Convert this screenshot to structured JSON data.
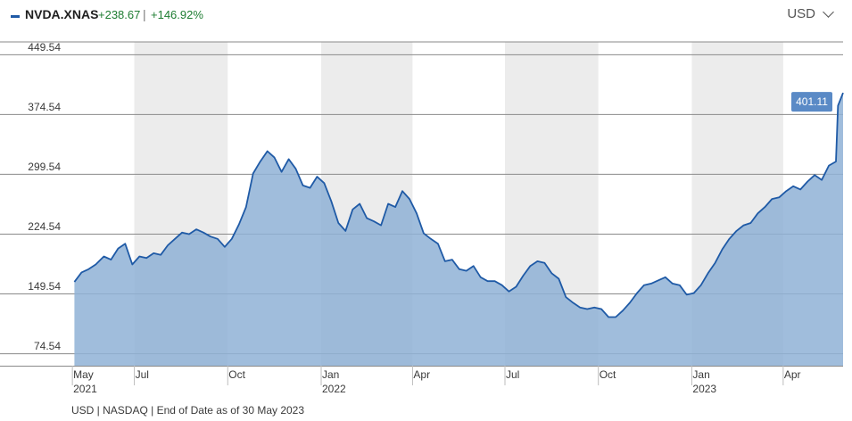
{
  "header": {
    "ticker": "NVDA.XNAS",
    "change_abs": "+238.67",
    "separator": "|",
    "change_pct": "+146.92%",
    "currency": "USD"
  },
  "footer": {
    "note": "USD | NASDAQ | End of Date as of 30 May 2023"
  },
  "colors": {
    "line": "#1f5aa6",
    "area": "#8fb1d6",
    "shade": "#ececec",
    "positive": "#1e7d32",
    "last_badge": "#5a8ac6"
  },
  "chart_data": {
    "type": "area",
    "series": [
      {
        "name": "NVDA.XNAS",
        "x": [
          "2021-05-03",
          "2021-05-10",
          "2021-05-17",
          "2021-05-24",
          "2021-06-01",
          "2021-06-08",
          "2021-06-15",
          "2021-06-22",
          "2021-06-29",
          "2021-07-06",
          "2021-07-13",
          "2021-07-20",
          "2021-07-27",
          "2021-08-03",
          "2021-08-10",
          "2021-08-17",
          "2021-08-24",
          "2021-08-31",
          "2021-09-07",
          "2021-09-14",
          "2021-09-21",
          "2021-09-28",
          "2021-10-05",
          "2021-10-12",
          "2021-10-19",
          "2021-10-26",
          "2021-11-02",
          "2021-11-09",
          "2021-11-16",
          "2021-11-23",
          "2021-11-30",
          "2021-12-07",
          "2021-12-14",
          "2021-12-21",
          "2021-12-28",
          "2022-01-04",
          "2022-01-11",
          "2022-01-18",
          "2022-01-25",
          "2022-02-01",
          "2022-02-08",
          "2022-02-15",
          "2022-02-22",
          "2022-03-01",
          "2022-03-08",
          "2022-03-15",
          "2022-03-22",
          "2022-03-29",
          "2022-04-05",
          "2022-04-12",
          "2022-04-19",
          "2022-04-26",
          "2022-05-03",
          "2022-05-10",
          "2022-05-17",
          "2022-05-24",
          "2022-05-31",
          "2022-06-07",
          "2022-06-14",
          "2022-06-21",
          "2022-06-28",
          "2022-07-05",
          "2022-07-12",
          "2022-07-19",
          "2022-07-26",
          "2022-08-02",
          "2022-08-09",
          "2022-08-16",
          "2022-08-23",
          "2022-08-30",
          "2022-09-06",
          "2022-09-13",
          "2022-09-20",
          "2022-09-27",
          "2022-10-04",
          "2022-10-11",
          "2022-10-18",
          "2022-10-25",
          "2022-11-01",
          "2022-11-08",
          "2022-11-15",
          "2022-11-22",
          "2022-11-29",
          "2022-12-06",
          "2022-12-13",
          "2022-12-20",
          "2022-12-27",
          "2023-01-03",
          "2023-01-10",
          "2023-01-17",
          "2023-01-24",
          "2023-01-31",
          "2023-02-07",
          "2023-02-14",
          "2023-02-21",
          "2023-02-28",
          "2023-03-07",
          "2023-03-14",
          "2023-03-21",
          "2023-03-28",
          "2023-04-04",
          "2023-04-11",
          "2023-04-18",
          "2023-04-25",
          "2023-05-02",
          "2023-05-09",
          "2023-05-16",
          "2023-05-23",
          "2023-05-25",
          "2023-05-30"
        ],
        "values": [
          164,
          176,
          180,
          186,
          196,
          192,
          206,
          212,
          186,
          196,
          194,
          200,
          198,
          210,
          218,
          226,
          224,
          230,
          226,
          221,
          218,
          208,
          218,
          236,
          258,
          300,
          315,
          328,
          320,
          302,
          318,
          306,
          285,
          282,
          296,
          288,
          265,
          238,
          228,
          255,
          262,
          244,
          240,
          235,
          262,
          258,
          278,
          268,
          250,
          225,
          218,
          212,
          190,
          192,
          180,
          178,
          184,
          170,
          165,
          165,
          160,
          152,
          158,
          172,
          184,
          190,
          188,
          175,
          168,
          145,
          138,
          132,
          130,
          132,
          130,
          120,
          120,
          128,
          138,
          150,
          160,
          162,
          166,
          170,
          162,
          160,
          148,
          150,
          160,
          175,
          188,
          205,
          218,
          228,
          235,
          238,
          250,
          258,
          268,
          270,
          278,
          284,
          280,
          290,
          298,
          292,
          310,
          315,
          385,
          401.11
        ]
      }
    ],
    "xlim": [
      "2021-04-30",
      "2023-05-30"
    ],
    "ylim": [
      59,
      465
    ],
    "y_ticks": [
      449.54,
      374.54,
      299.54,
      224.54,
      149.54,
      74.54
    ],
    "x_ticks": [
      {
        "date": "2021-05-01",
        "label": "May",
        "sublabel": "2021"
      },
      {
        "date": "2021-07-01",
        "label": "Jul",
        "sublabel": ""
      },
      {
        "date": "2021-10-01",
        "label": "Oct",
        "sublabel": ""
      },
      {
        "date": "2022-01-01",
        "label": "Jan",
        "sublabel": "2022"
      },
      {
        "date": "2022-04-01",
        "label": "Apr",
        "sublabel": ""
      },
      {
        "date": "2022-07-01",
        "label": "Jul",
        "sublabel": ""
      },
      {
        "date": "2022-10-01",
        "label": "Oct",
        "sublabel": ""
      },
      {
        "date": "2023-01-01",
        "label": "Jan",
        "sublabel": "2023"
      },
      {
        "date": "2023-04-01",
        "label": "Apr",
        "sublabel": ""
      }
    ],
    "shaded_quarters": [
      [
        "2021-07-01",
        "2021-10-01"
      ],
      [
        "2022-01-01",
        "2022-04-01"
      ],
      [
        "2022-07-01",
        "2022-10-01"
      ],
      [
        "2023-01-01",
        "2023-04-01"
      ]
    ],
    "last_value_label": "401.11",
    "grid": true
  }
}
